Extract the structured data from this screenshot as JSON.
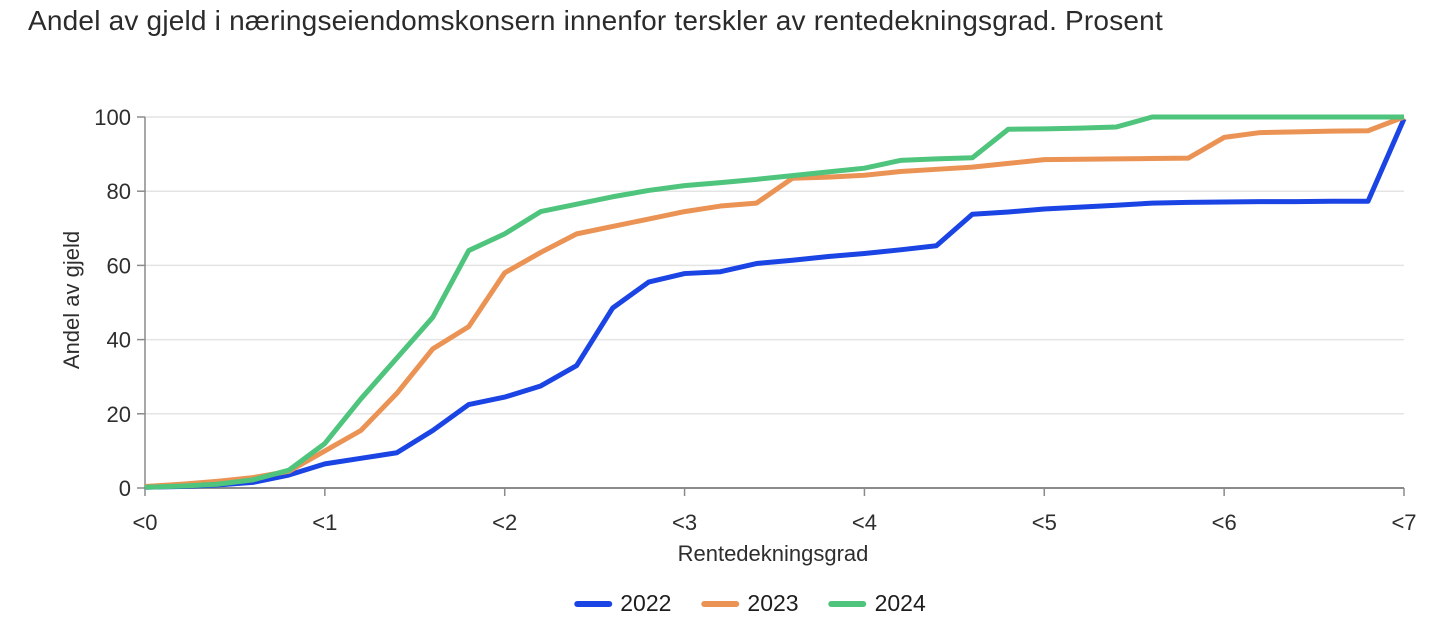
{
  "chart_data": {
    "type": "line",
    "title": "Andel av gjeld i næringseiendomskonsern innenfor terskler av rentedekningsgrad. Prosent",
    "xlabel": "Rentedekningsgrad",
    "ylabel": "Andel av gjeld",
    "xlim": [
      0,
      7
    ],
    "ylim": [
      0,
      100
    ],
    "grid": "horizontal",
    "legend_position": "bottom",
    "x_ticks": [
      0,
      1,
      2,
      3,
      4,
      5,
      6,
      7
    ],
    "x_tick_labels": [
      "<0",
      "<1",
      "<2",
      "<3",
      "<4",
      "<5",
      "<6",
      "<7"
    ],
    "y_ticks": [
      0,
      20,
      40,
      60,
      80,
      100
    ],
    "y_tick_labels": [
      "0",
      "20",
      "40",
      "60",
      "80",
      "100"
    ],
    "x": [
      0,
      0.2,
      0.4,
      0.6,
      0.8,
      1.0,
      1.2,
      1.4,
      1.6,
      1.8,
      2.0,
      2.2,
      2.4,
      2.6,
      2.8,
      3.0,
      3.2,
      3.4,
      3.6,
      3.8,
      4.0,
      4.2,
      4.4,
      4.6,
      4.8,
      5.0,
      5.2,
      5.4,
      5.6,
      5.8,
      6.0,
      6.2,
      6.4,
      6.6,
      6.8,
      7.0
    ],
    "series": [
      {
        "name": "2022",
        "color": "#1b44e4",
        "values": [
          0.2,
          0.4,
          0.8,
          1.5,
          3.5,
          6.5,
          8,
          9.5,
          15.5,
          22.5,
          24.5,
          27.5,
          33,
          48.5,
          55.5,
          57.8,
          58.3,
          60.5,
          61.4,
          62.4,
          63.2,
          64.2,
          65.3,
          73.8,
          74.4,
          75.2,
          75.7,
          76.2,
          76.8,
          77,
          77.1,
          77.2,
          77.2,
          77.3,
          77.3,
          99.5
        ]
      },
      {
        "name": "2023",
        "color": "#eb9355",
        "values": [
          0.4,
          1,
          1.8,
          2.8,
          4.5,
          10,
          15.5,
          25.5,
          37.5,
          43.5,
          58,
          63.5,
          68.5,
          70.5,
          72.5,
          74.5,
          76,
          76.8,
          83.5,
          83.8,
          84.3,
          85.3,
          85.9,
          86.5,
          87.5,
          88.5,
          88.6,
          88.7,
          88.8,
          88.9,
          94.5,
          95.8,
          96,
          96.2,
          96.3,
          100
        ]
      },
      {
        "name": "2024",
        "color": "#4ec47c",
        "values": [
          0.2,
          0.5,
          1,
          2.2,
          4.8,
          12,
          24,
          35,
          46,
          64,
          68.5,
          74.5,
          76.5,
          78.5,
          80.2,
          81.5,
          82.3,
          83.2,
          84.2,
          85.2,
          86.2,
          88.3,
          88.7,
          89,
          96.7,
          96.8,
          97,
          97.3,
          100,
          100,
          100,
          100,
          100,
          100,
          100,
          100
        ]
      }
    ]
  },
  "colors": {
    "grid": "#e4e4e4",
    "axis": "#8a8a8a",
    "text": "#2e2e2e",
    "title": "#2b2b2b"
  }
}
